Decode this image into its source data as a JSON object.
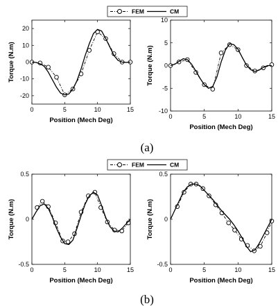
{
  "captions": [
    "(a)",
    "(b)"
  ],
  "legend": {
    "fem": "FEM",
    "cm": "CM"
  },
  "chart_data": [
    {
      "type": "line",
      "xlabel": "Position (Mech Deg)",
      "ylabel": "Torque (N.m)",
      "xlim": [
        0,
        15
      ],
      "ylim": [
        -25,
        25
      ],
      "xticks": [
        0,
        5,
        10,
        15
      ],
      "yticks": [
        -20,
        -10,
        0,
        10,
        20
      ],
      "series": [
        {
          "name": "FEM",
          "style": "dash-dot with circles",
          "x": [
            0,
            1.25,
            2.5,
            3.75,
            5,
            6.25,
            7.5,
            8.75,
            10,
            11.25,
            12.5,
            13.75,
            15
          ],
          "y": [
            0,
            -0.5,
            -3,
            -9,
            -19.5,
            -16,
            -7,
            7,
            18,
            14,
            5,
            0,
            0
          ]
        },
        {
          "name": "CM",
          "style": "solid",
          "x": [
            0,
            0.625,
            1.25,
            1.875,
            2.5,
            3.125,
            3.75,
            4.375,
            5,
            5.625,
            6.25,
            6.875,
            7.5,
            8.125,
            8.75,
            9.375,
            10,
            10.625,
            11.25,
            11.875,
            12.5,
            13.125,
            13.75,
            14.375,
            15
          ],
          "y": [
            0,
            -0.2,
            -1,
            -2.5,
            -6,
            -10.5,
            -15,
            -18.5,
            -19.5,
            -19,
            -16,
            -11,
            -4,
            4,
            11,
            17,
            19.5,
            18.5,
            14,
            9,
            4,
            1,
            0,
            -0.2,
            0
          ]
        }
      ]
    },
    {
      "type": "line",
      "xlabel": "Position (Mech Deg)",
      "ylabel": "Torque (N.m)",
      "xlim": [
        0,
        15
      ],
      "ylim": [
        -10,
        10
      ],
      "xticks": [
        0,
        5,
        10,
        15
      ],
      "yticks": [
        -10,
        -5,
        0,
        5,
        10
      ],
      "series": [
        {
          "name": "FEM",
          "style": "dash-dot with circles",
          "x": [
            0,
            1.25,
            2.5,
            3.75,
            5,
            6.25,
            7.5,
            8.75,
            10,
            11.25,
            12.5,
            13.75,
            15
          ],
          "y": [
            0,
            0.8,
            1.3,
            -1.5,
            -4.2,
            -5.2,
            2.8,
            4.6,
            3.5,
            0,
            -1.2,
            -0.5,
            0.2
          ]
        },
        {
          "name": "CM",
          "style": "solid",
          "x": [
            0,
            0.625,
            1.25,
            1.875,
            2.5,
            3.125,
            3.75,
            4.375,
            5,
            5.625,
            6.25,
            6.875,
            7.5,
            8.125,
            8.75,
            9.375,
            10,
            10.625,
            11.25,
            11.875,
            12.5,
            13.125,
            13.75,
            14.375,
            15
          ],
          "y": [
            0,
            0.3,
            0.9,
            1.5,
            1.3,
            0.3,
            -1.2,
            -2.8,
            -4.2,
            -5,
            -4.6,
            -2.5,
            0.8,
            3.4,
            4.8,
            4.6,
            3.6,
            1.8,
            0.1,
            -0.9,
            -1.3,
            -1,
            -0.4,
            0,
            0
          ]
        }
      ]
    },
    {
      "type": "line",
      "xlabel": "Position (Mech Deg)",
      "ylabel": "Torque (N.m)",
      "xlim": [
        0,
        15
      ],
      "ylim": [
        -0.5,
        0.5
      ],
      "xticks": [
        0,
        5,
        10,
        15
      ],
      "yticks": [
        -0.5,
        0,
        0.5
      ],
      "series": [
        {
          "name": "FEM",
          "style": "dash-dot with circles",
          "x": [
            0.8,
            1.6,
            2.5,
            3.6,
            4.7,
            5.5,
            6.5,
            7.5,
            8.6,
            9.6,
            10.5,
            11.5,
            12.6,
            13.7,
            14.7
          ],
          "y": [
            0.13,
            0.2,
            0.14,
            -0.04,
            -0.24,
            -0.25,
            -0.16,
            0.08,
            0.26,
            0.3,
            0.13,
            -0.03,
            -0.12,
            -0.13,
            -0.04
          ]
        },
        {
          "name": "CM",
          "style": "solid",
          "x": [
            0,
            0.625,
            1.25,
            1.875,
            2.5,
            3.125,
            3.75,
            4.375,
            5,
            5.625,
            6.25,
            6.875,
            7.5,
            8.125,
            8.75,
            9.375,
            10,
            10.625,
            11.25,
            11.875,
            12.5,
            13.125,
            13.75,
            14.375,
            15
          ],
          "y": [
            0,
            0.08,
            0.15,
            0.17,
            0.12,
            0.02,
            -0.1,
            -0.2,
            -0.27,
            -0.28,
            -0.23,
            -0.1,
            0.04,
            0.17,
            0.26,
            0.3,
            0.27,
            0.15,
            0.02,
            -0.08,
            -0.13,
            -0.14,
            -0.1,
            -0.05,
            0
          ]
        }
      ]
    },
    {
      "type": "line",
      "xlabel": "Position (Mech Deg)",
      "ylabel": "Torque (N.m)",
      "xlim": [
        0,
        15
      ],
      "ylim": [
        -0.5,
        0.5
      ],
      "xticks": [
        0,
        5,
        10,
        15
      ],
      "yticks": [
        -0.5,
        0,
        0.5
      ],
      "series": [
        {
          "name": "FEM",
          "style": "dash-dot with circles",
          "x": [
            1,
            2,
            3,
            3.8,
            4.8,
            5.7,
            6.7,
            7.6,
            8.6,
            9.5,
            10.5,
            11.4,
            12.4,
            13.3,
            14.3,
            15
          ],
          "y": [
            0.14,
            0.3,
            0.39,
            0.39,
            0.34,
            0.26,
            0.16,
            0.07,
            -0.04,
            -0.12,
            -0.22,
            -0.29,
            -0.35,
            -0.3,
            -0.15,
            -0.02
          ]
        },
        {
          "name": "CM",
          "style": "solid",
          "x": [
            0,
            0.625,
            1.25,
            1.875,
            2.5,
            3.125,
            3.75,
            4.375,
            5,
            5.625,
            6.25,
            6.875,
            7.5,
            8.125,
            8.75,
            9.375,
            10,
            10.625,
            11.25,
            11.875,
            12.5,
            13.125,
            13.75,
            14.375,
            15
          ],
          "y": [
            0,
            0.1,
            0.2,
            0.3,
            0.36,
            0.39,
            0.39,
            0.37,
            0.32,
            0.27,
            0.22,
            0.16,
            0.1,
            0.05,
            0,
            -0.06,
            -0.13,
            -0.21,
            -0.3,
            -0.36,
            -0.34,
            -0.27,
            -0.18,
            -0.09,
            0
          ]
        }
      ]
    }
  ]
}
